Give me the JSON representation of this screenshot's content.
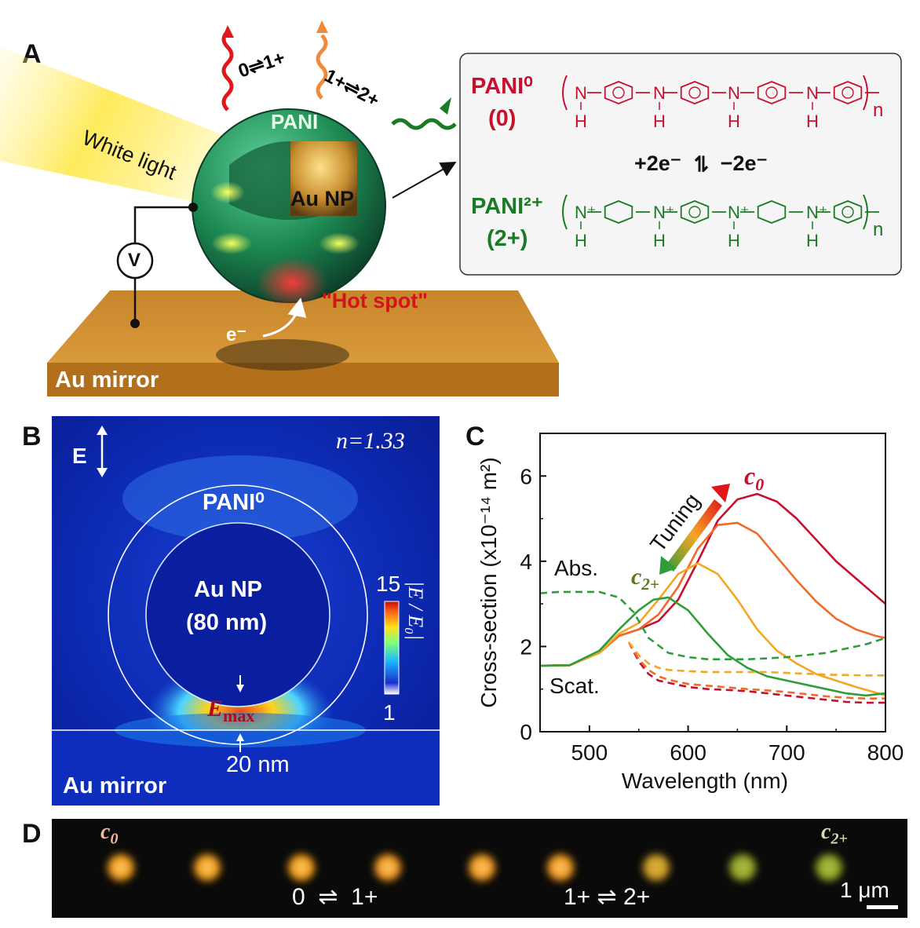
{
  "panel_a": {
    "label": "A",
    "light_label": "White light",
    "transition_1": "0⇌1+",
    "transition_2": "1+⇌2+",
    "pani_label": "PANI",
    "au_np_label": "Au NP",
    "hot_spot_label": "\"Hot spot\"",
    "electron_label": "e⁻",
    "voltage_label": "V",
    "mirror_label": "Au mirror",
    "structure_box": {
      "pani0_name": "PANI⁰",
      "pani0_state": "(0)",
      "pani2_name": "PANI²⁺",
      "pani2_state": "(2+)",
      "reaction_left": "+2e⁻",
      "reaction_arrows": "⇌",
      "reaction_right": "−2e⁻",
      "n_subscript": "n",
      "n_atom": "N",
      "n_plus_atom": "N⁺",
      "h_atom": "H",
      "colors": {
        "pani0": "#c8102e",
        "pani2": "#1a7a25"
      }
    }
  },
  "panel_b": {
    "label": "B",
    "field_label": "E",
    "refractive_index": "n=1.33",
    "pani_label": "PANI⁰",
    "au_np_label": "Au NP",
    "au_np_size": "(80 nm)",
    "colorbar_max": "15",
    "colorbar_min": "1",
    "colorbar_title": "|E / E₀|",
    "emax_label": "E",
    "emax_sub": "max",
    "gap_label": "20 nm",
    "mirror_label": "Au mirror"
  },
  "panel_c": {
    "label": "C",
    "tuning_label": "Tuning",
    "c0_label": "c",
    "c0_sub": "0",
    "c2_label": "c",
    "c2_sub": "2+",
    "abs_label": "Abs.",
    "scat_label": "Scat."
  },
  "chart_data": {
    "type": "line",
    "xlabel": "Wavelength (nm)",
    "ylabel": "Cross-section (x10⁻¹⁴ m²)",
    "xlim": [
      450,
      800
    ],
    "ylim": [
      0,
      7
    ],
    "xticks": [
      500,
      600,
      700,
      800
    ],
    "yticks": [
      0,
      2,
      4,
      6
    ],
    "series": [
      {
        "group": "scat",
        "color": "#c8102e",
        "style": "solid",
        "x": [
          450,
          480,
          510,
          530,
          550,
          570,
          590,
          610,
          630,
          650,
          670,
          690,
          710,
          730,
          750,
          770,
          790,
          800
        ],
        "y": [
          1.55,
          1.56,
          1.85,
          2.25,
          2.4,
          2.6,
          3.1,
          4.0,
          4.95,
          5.45,
          5.58,
          5.4,
          5.0,
          4.5,
          4.0,
          3.6,
          3.2,
          3.0
        ]
      },
      {
        "group": "scat",
        "color": "#f06a2a",
        "style": "solid",
        "x": [
          450,
          480,
          510,
          530,
          550,
          570,
          590,
          610,
          630,
          650,
          670,
          690,
          710,
          730,
          750,
          770,
          790,
          800
        ],
        "y": [
          1.55,
          1.56,
          1.85,
          2.25,
          2.4,
          2.75,
          3.4,
          4.3,
          4.85,
          4.9,
          4.65,
          4.1,
          3.55,
          3.05,
          2.65,
          2.4,
          2.25,
          2.2
        ]
      },
      {
        "group": "scat",
        "color": "#f5a623",
        "style": "solid",
        "x": [
          450,
          480,
          510,
          530,
          550,
          570,
          590,
          610,
          630,
          650,
          670,
          690,
          710,
          730,
          750,
          770,
          790,
          800
        ],
        "y": [
          1.55,
          1.56,
          1.85,
          2.3,
          2.55,
          3.1,
          3.7,
          3.95,
          3.7,
          3.1,
          2.4,
          1.9,
          1.6,
          1.35,
          1.2,
          1.05,
          0.92,
          0.85
        ]
      },
      {
        "group": "scat",
        "color": "#2e9d3a",
        "style": "solid",
        "x": [
          450,
          480,
          510,
          530,
          550,
          565,
          580,
          600,
          620,
          640,
          660,
          680,
          700,
          720,
          740,
          760,
          780,
          800
        ],
        "y": [
          1.55,
          1.56,
          1.9,
          2.4,
          2.85,
          3.1,
          3.15,
          2.85,
          2.3,
          1.8,
          1.5,
          1.3,
          1.2,
          1.1,
          1.0,
          0.9,
          0.85,
          0.9
        ]
      },
      {
        "group": "abs",
        "color": "#c8102e",
        "style": "dashed",
        "x": [
          540,
          550,
          560,
          570,
          580,
          600,
          620,
          640,
          660,
          680,
          700,
          720,
          740,
          760,
          780,
          800
        ],
        "y": [
          2.1,
          1.65,
          1.35,
          1.2,
          1.15,
          1.05,
          1.0,
          0.98,
          0.95,
          0.9,
          0.85,
          0.8,
          0.75,
          0.7,
          0.68,
          0.68
        ]
      },
      {
        "group": "abs",
        "color": "#f06a2a",
        "style": "dashed",
        "x": [
          540,
          550,
          560,
          570,
          580,
          600,
          620,
          640,
          660,
          680,
          700,
          720,
          740,
          760,
          780,
          800
        ],
        "y": [
          2.1,
          1.7,
          1.45,
          1.3,
          1.22,
          1.12,
          1.08,
          1.04,
          1.0,
          0.97,
          0.93,
          0.88,
          0.83,
          0.8,
          0.78,
          0.78
        ]
      },
      {
        "group": "abs",
        "color": "#f5a623",
        "style": "dashed",
        "x": [
          540,
          550,
          560,
          570,
          580,
          600,
          620,
          640,
          660,
          680,
          700,
          720,
          740,
          760,
          780,
          800
        ],
        "y": [
          2.1,
          1.8,
          1.6,
          1.5,
          1.45,
          1.42,
          1.4,
          1.4,
          1.4,
          1.4,
          1.38,
          1.36,
          1.34,
          1.33,
          1.32,
          1.32
        ]
      },
      {
        "group": "abs",
        "color": "#2e9d3a",
        "style": "dashed",
        "x": [
          450,
          470,
          490,
          510,
          530,
          545,
          560,
          580,
          600,
          620,
          640,
          660,
          680,
          700,
          720,
          740,
          760,
          780,
          800
        ],
        "y": [
          3.25,
          3.28,
          3.28,
          3.28,
          3.15,
          2.8,
          2.2,
          1.85,
          1.75,
          1.7,
          1.7,
          1.7,
          1.72,
          1.75,
          1.8,
          1.85,
          1.95,
          2.05,
          2.2
        ]
      }
    ]
  },
  "panel_d": {
    "label": "D",
    "start_label": "c",
    "start_sub": "0",
    "end_label": "c",
    "end_sub": "2+",
    "transition_1": "0  ⇌  1+",
    "transition_2": "1+ ⇌ 2+",
    "scale_bar": "1 μm",
    "particle_colors": [
      "#ffa51f",
      "#ffa51f",
      "#ffa51f",
      "#ffa020",
      "#ffa020",
      "#ffa020",
      "#ffa020",
      "#ffa020",
      "#d8a525",
      "#c8ad2a",
      "#9cb02a",
      "#98b22c"
    ]
  }
}
